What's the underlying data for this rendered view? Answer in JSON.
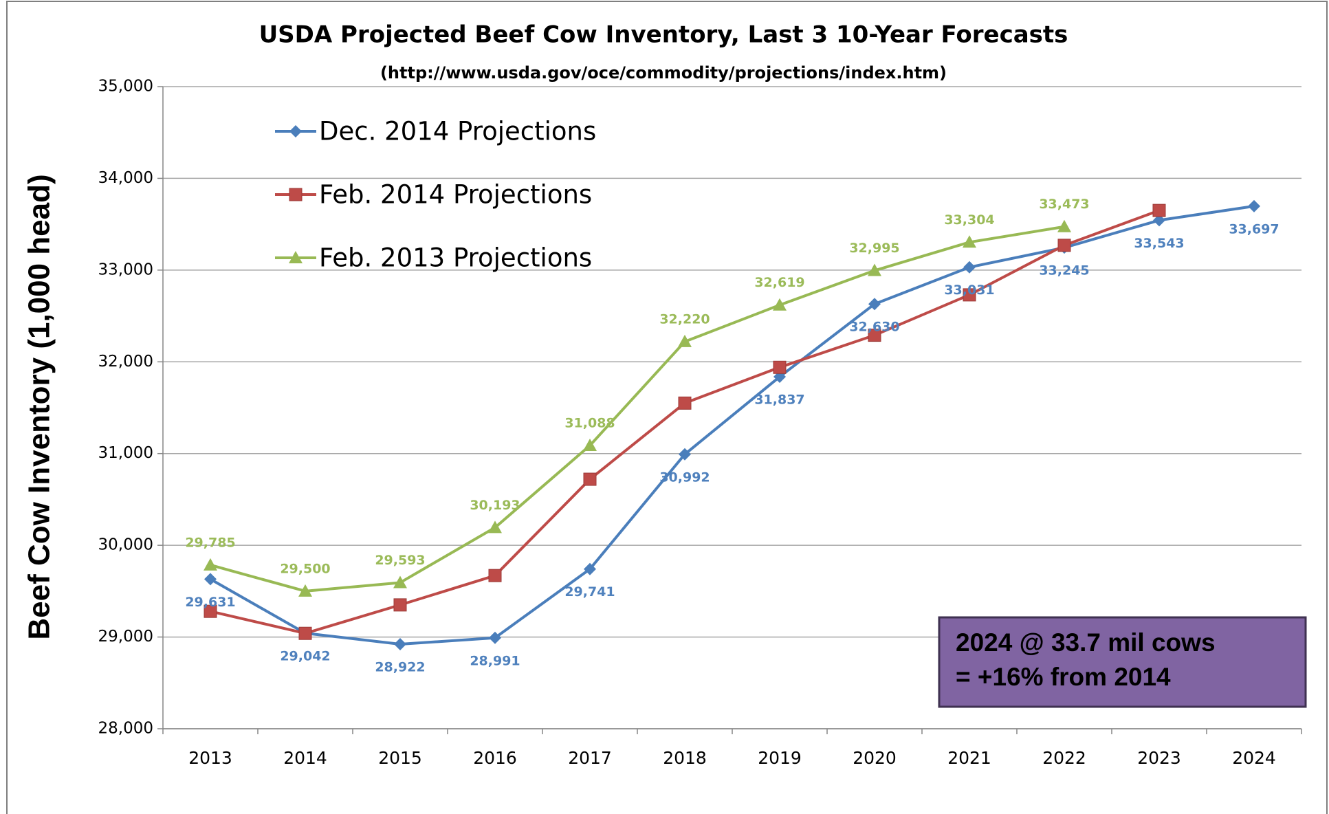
{
  "chart_data": {
    "type": "line",
    "title": "USDA Projected Beef Cow Inventory, Last 3 10-Year Forecasts",
    "subtitle": "(http://www.usda.gov/oce/commodity/projections/index.htm)",
    "y_label": "Beef Cow Inventory (1,000 head)",
    "categories": [
      "2013",
      "2014",
      "2015",
      "2016",
      "2017",
      "2018",
      "2019",
      "2020",
      "2021",
      "2022",
      "2023",
      "2024"
    ],
    "series": [
      {
        "name": "Dec. 2014 Projections",
        "color": "#4a7ebb",
        "label_color": "#4f81bd",
        "marker": "diamond",
        "label_position": "below",
        "values": [
          29631,
          29042,
          28922,
          28991,
          29741,
          30992,
          31837,
          32630,
          33031,
          33245,
          33543,
          33697
        ],
        "value_labels": [
          "29,631",
          "29,042",
          "28,922",
          "28,991",
          "29,741",
          "30,992",
          "31,837",
          "32,630",
          "33,031",
          "33,245",
          "33,543",
          "33,697"
        ]
      },
      {
        "name": "Feb. 2014 Projections",
        "color": "#be4b48",
        "marker": "square",
        "values": [
          29280,
          29040,
          29350,
          29670,
          30720,
          31550,
          31940,
          32290,
          32730,
          33270,
          33650,
          null
        ]
      },
      {
        "name": "Feb. 2013 Projections",
        "color": "#98b954",
        "label_color": "#9bbb59",
        "marker": "triangle",
        "label_position": "above",
        "values": [
          29785,
          29500,
          29593,
          30193,
          31088,
          32220,
          32619,
          32995,
          33304,
          33473,
          null,
          null
        ],
        "value_labels": [
          "29,785",
          "29,500",
          "29,593",
          "30,193",
          "31,088",
          "32,220",
          "32,619",
          "32,995",
          "33,304",
          "33,473",
          null,
          null
        ]
      }
    ],
    "ylim": [
      28000,
      35000
    ],
    "yticks": [
      {
        "value": 28000,
        "label": "28,000"
      },
      {
        "value": 29000,
        "label": "29,000"
      },
      {
        "value": 30000,
        "label": "30,000"
      },
      {
        "value": 31000,
        "label": "31,000"
      },
      {
        "value": 32000,
        "label": "32,000"
      },
      {
        "value": 33000,
        "label": "33,000"
      },
      {
        "value": 34000,
        "label": "34,000"
      },
      {
        "value": 35000,
        "label": "35,000"
      }
    ],
    "grid": true,
    "legend": "upper left",
    "annotation": [
      "2024 @ 33.7 mil cows",
      "= +16% from 2014"
    ]
  }
}
